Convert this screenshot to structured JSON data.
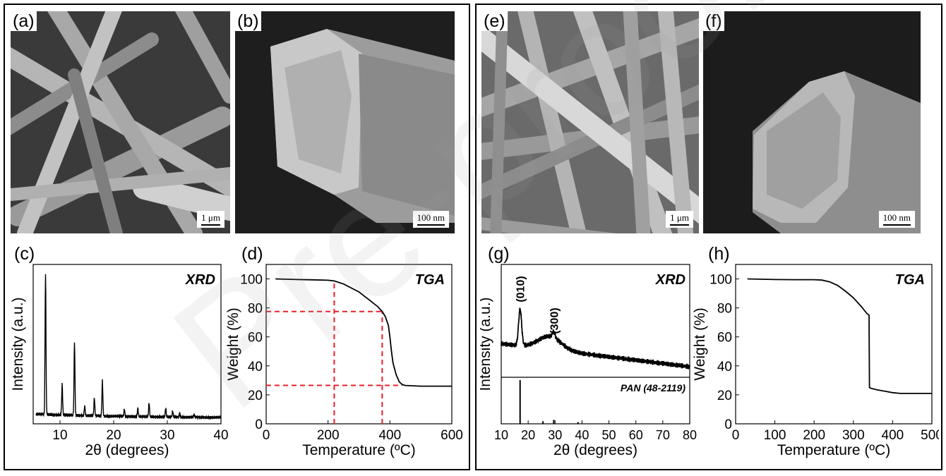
{
  "panels": {
    "a": {
      "label": "(a)",
      "scale": "1 μm"
    },
    "b": {
      "label": "(b)",
      "scale": "100 nm"
    },
    "e": {
      "label": "(e)",
      "scale": "1 μm"
    },
    "f": {
      "label": "(f)",
      "scale": "100 nm"
    },
    "c": {
      "label": "(c)"
    },
    "d": {
      "label": "(d)"
    },
    "g": {
      "label": "(g)"
    },
    "h": {
      "label": "(h)"
    }
  },
  "watermark": "Pre-proof",
  "chart_data": [
    {
      "id": "c",
      "type": "line",
      "annotation": "XRD",
      "xlabel": "2θ (degrees)",
      "ylabel": "Intensity (a.u.)",
      "xlim": [
        5,
        40
      ],
      "xticks": [
        10,
        20,
        30,
        40
      ],
      "peaks": [
        [
          7.3,
          1.0
        ],
        [
          10.4,
          0.22
        ],
        [
          12.7,
          0.52
        ],
        [
          14.6,
          0.07
        ],
        [
          16.4,
          0.13
        ],
        [
          17.9,
          0.25
        ],
        [
          22.0,
          0.05
        ],
        [
          24.5,
          0.06
        ],
        [
          26.6,
          0.1
        ],
        [
          29.7,
          0.06
        ],
        [
          31.0,
          0.04
        ],
        [
          32.3,
          0.03
        ],
        [
          35.0,
          0.02
        ]
      ],
      "baseline": 0.03
    },
    {
      "id": "d",
      "type": "line",
      "annotation": "TGA",
      "xlabel": "Temperature (ºC)",
      "ylabel": "Weight (%)",
      "xlim": [
        0,
        600
      ],
      "ylim": [
        0,
        110
      ],
      "xticks": [
        0,
        200,
        400,
        600
      ],
      "yticks": [
        0,
        20,
        40,
        60,
        80,
        100
      ],
      "x": [
        30,
        100,
        150,
        200,
        220,
        250,
        300,
        330,
        360,
        375,
        385,
        395,
        400,
        405,
        410,
        420,
        430,
        440,
        450,
        500,
        550,
        600
      ],
      "y": [
        100,
        99.6,
        99.4,
        99.1,
        98.6,
        96.5,
        91,
        86,
        81,
        77.5,
        74,
        68,
        60,
        50,
        42,
        34,
        29,
        27,
        26.5,
        26,
        26,
        26
      ],
      "guides": {
        "x": [
          220,
          375
        ],
        "y": [
          77.5,
          26.5
        ],
        "color": "#e8202a"
      }
    },
    {
      "id": "g",
      "type": "line",
      "annotation": "XRD",
      "xlabel": "2θ (degrees)",
      "ylabel": "Intensity (a.u.)",
      "xlim": [
        10,
        80
      ],
      "xticks": [
        10,
        20,
        30,
        40,
        50,
        60,
        70,
        80
      ],
      "peak_labels": [
        {
          "text": "(010)",
          "x": 17.0
        },
        {
          "text": "(300)",
          "x": 29.5
        }
      ],
      "reference": {
        "label": "PAN (48-2119)",
        "sticks": [
          [
            17.0,
            1.0
          ],
          [
            25.5,
            0.06
          ],
          [
            29.5,
            0.09
          ],
          [
            38.5,
            0.04
          ]
        ]
      }
    },
    {
      "id": "h",
      "type": "line",
      "annotation": "TGA",
      "xlabel": "Temperature (ºC)",
      "ylabel": "Weight (%)",
      "xlim": [
        0,
        500
      ],
      "ylim": [
        0,
        110
      ],
      "xticks": [
        0,
        100,
        200,
        300,
        400,
        500
      ],
      "yticks": [
        0,
        20,
        40,
        60,
        80,
        100
      ],
      "x": [
        30,
        100,
        150,
        200,
        220,
        240,
        260,
        280,
        300,
        320,
        335,
        340,
        341,
        345,
        360,
        380,
        400,
        420,
        450,
        500
      ],
      "y": [
        100,
        99.6,
        99.5,
        99.5,
        99.2,
        98,
        95.5,
        91.5,
        87,
        81,
        76,
        75,
        25,
        24.5,
        23.5,
        22.5,
        21.5,
        21,
        21,
        21
      ]
    }
  ]
}
